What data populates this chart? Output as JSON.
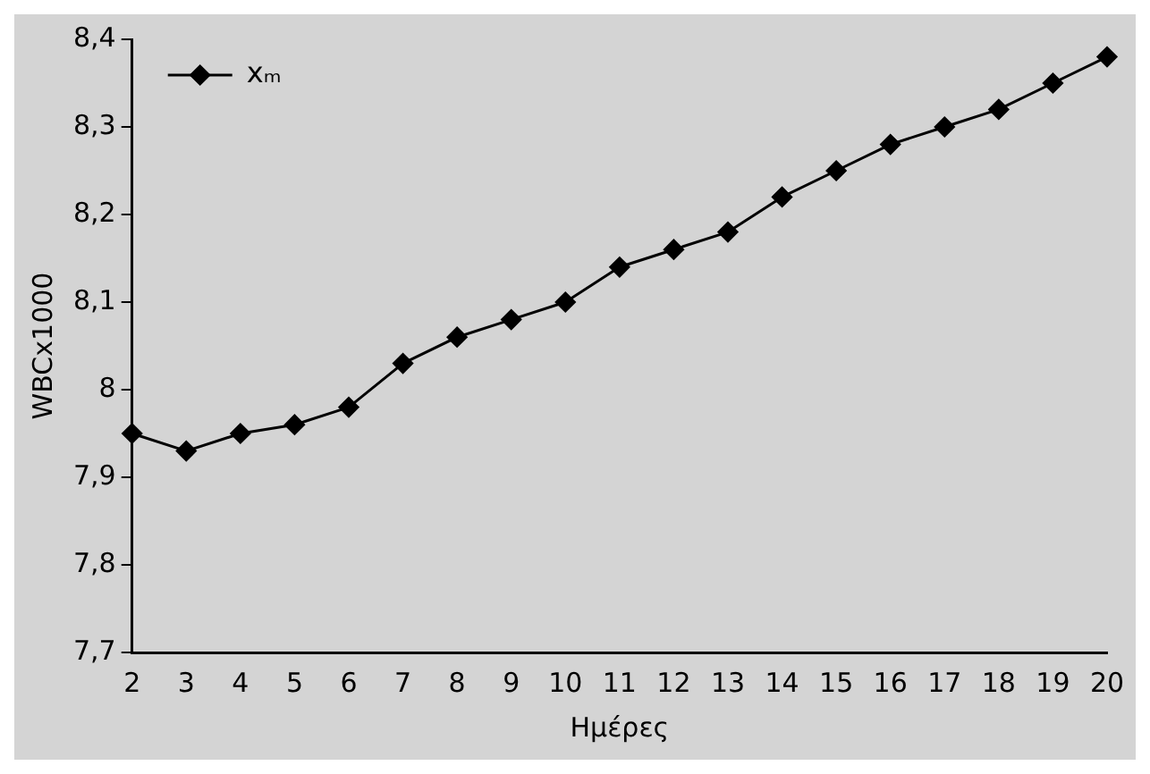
{
  "chart_data": {
    "type": "line",
    "xlabel": "Ημέρες",
    "ylabel": "WBCx1000",
    "categories": [
      "2",
      "3",
      "4",
      "5",
      "6",
      "7",
      "8",
      "9",
      "10",
      "11",
      "12",
      "13",
      "14",
      "15",
      "16",
      "17",
      "18",
      "19",
      "20"
    ],
    "series": [
      {
        "name": "xₘ",
        "color": "#000000",
        "values": [
          7.95,
          7.93,
          7.95,
          7.96,
          7.98,
          8.03,
          8.06,
          8.08,
          8.1,
          8.14,
          8.16,
          8.18,
          8.22,
          8.25,
          8.28,
          8.3,
          8.32,
          8.35,
          8.38
        ]
      }
    ],
    "ylim": [
      7.7,
      8.4
    ],
    "yticks": [
      {
        "value": 7.7,
        "label": "7,7"
      },
      {
        "value": 7.8,
        "label": "7,8"
      },
      {
        "value": 7.9,
        "label": "7,9"
      },
      8,
      {
        "value": 8.1,
        "label": "8,1"
      },
      {
        "value": 8.2,
        "label": "8,2"
      },
      {
        "value": 8.3,
        "label": "8,3"
      },
      {
        "value": 8.4,
        "label": "8,4"
      }
    ],
    "grid": false,
    "legend": "top left",
    "marker": "diamond",
    "line_style": "solid"
  }
}
